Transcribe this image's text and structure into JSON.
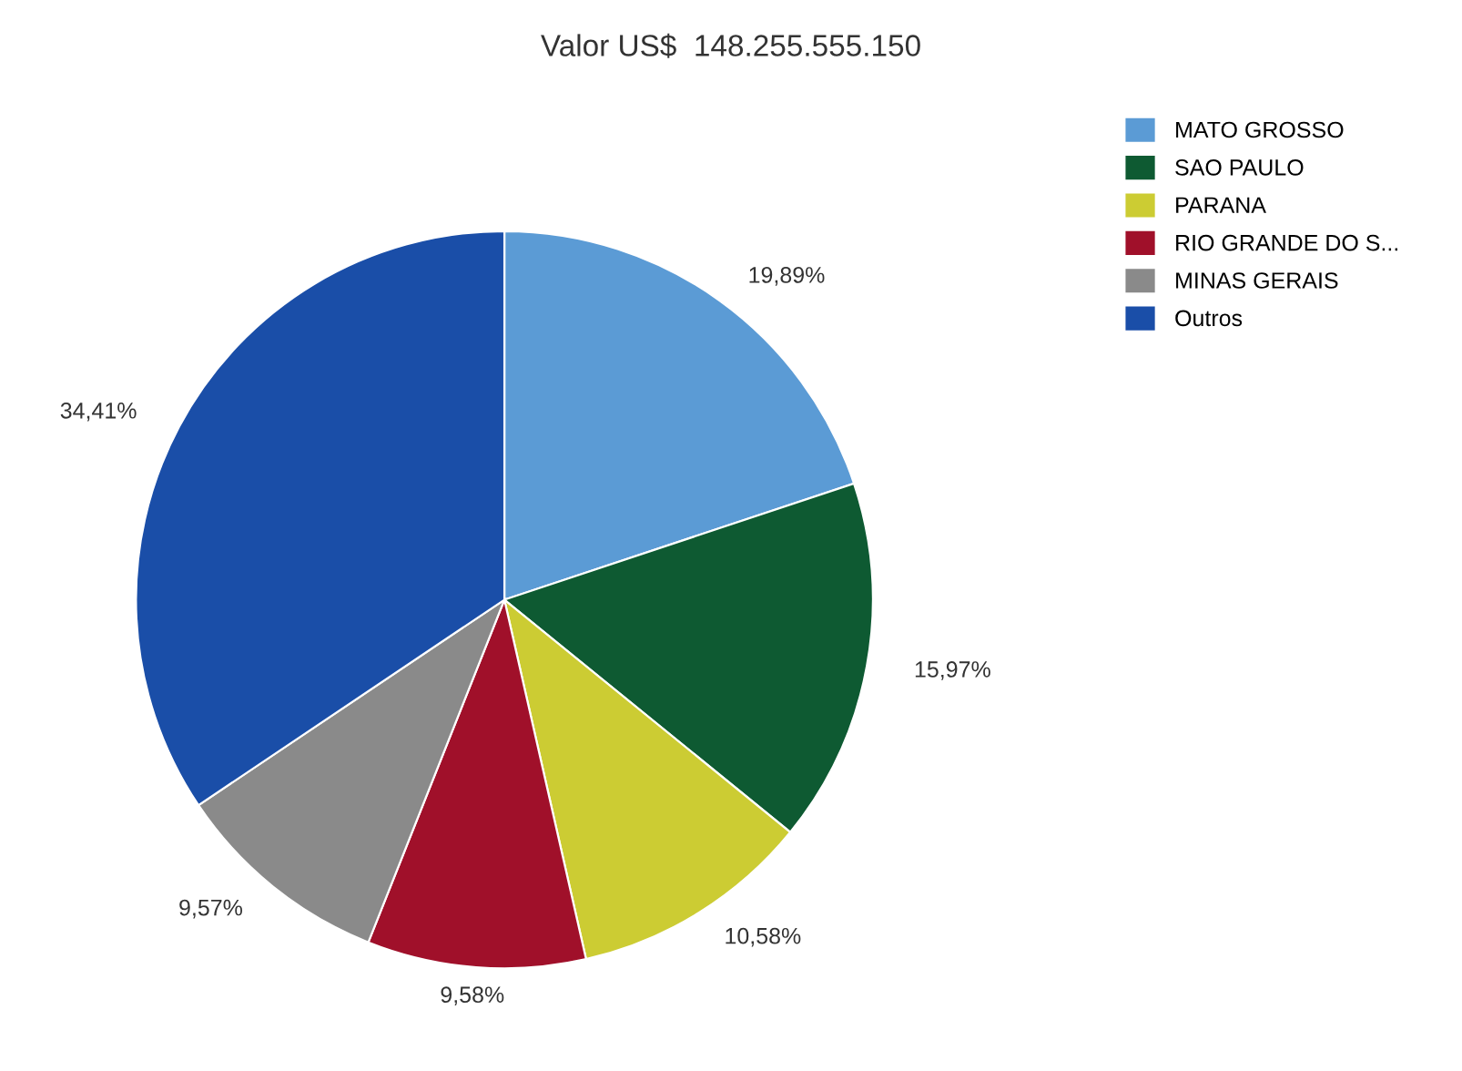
{
  "chart_data": {
    "type": "pie",
    "title": "Valor US$  148.255.555.150",
    "categories": [
      "MATO GROSSO",
      "SAO PAULO",
      "PARANA",
      "RIO GRANDE DO S...",
      "MINAS GERAIS",
      "Outros"
    ],
    "values": [
      19.89,
      15.97,
      10.58,
      9.58,
      9.57,
      34.41
    ],
    "value_labels": [
      "19,89%",
      "15,97%",
      "10,58%",
      "9,58%",
      "9,57%",
      "34,41%"
    ],
    "colors": [
      "#5b9bd5",
      "#0e5a32",
      "#cccc33",
      "#a0102a",
      "#8a8a8a",
      "#1a4ea8"
    ],
    "legend": "top right"
  }
}
